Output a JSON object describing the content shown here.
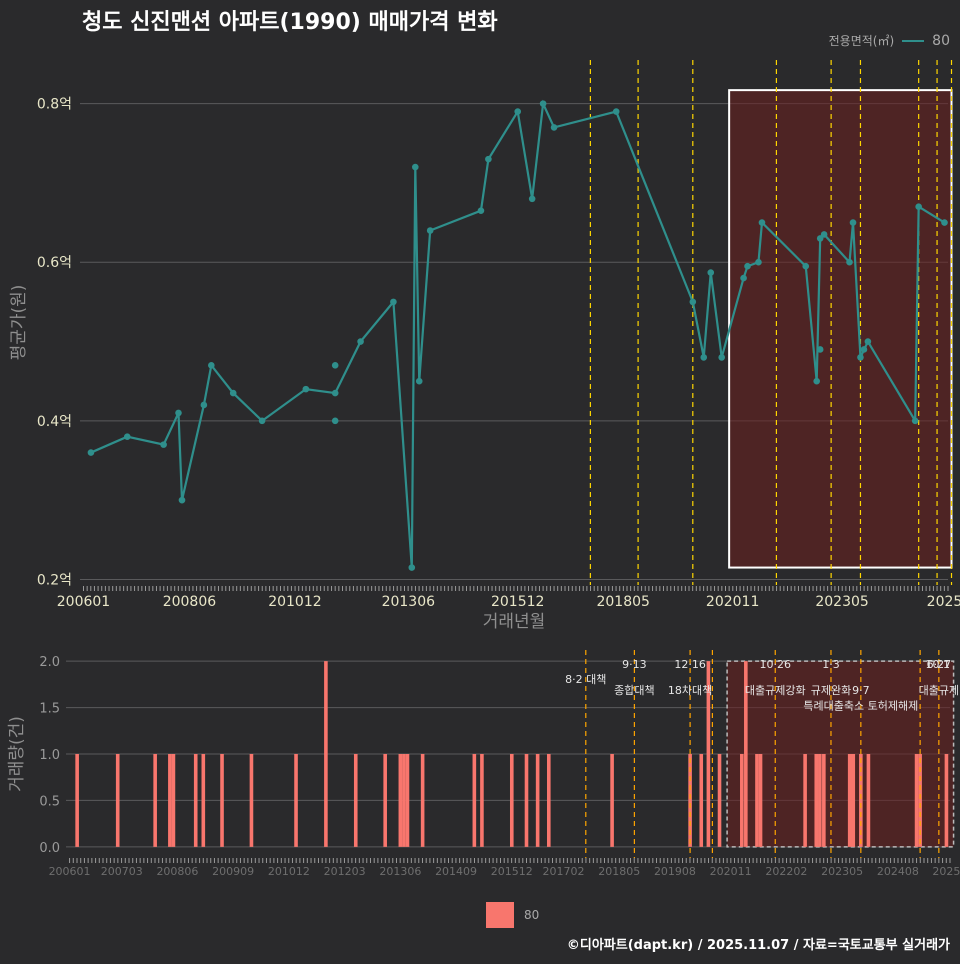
{
  "title": "청도 신진맨션 아파트(1990) 매매가격 변화",
  "credit": "©디아파트(dapt.kr) / 2025.11.07 / 자료=국토교통부 실거래가",
  "legend_top": {
    "title": "전용면적(㎡)",
    "value": "80"
  },
  "legend_bottom": {
    "value": "80"
  },
  "colors": {
    "background": "#2a2a2c",
    "line": "#2f8f8c",
    "bar": "#f8766d",
    "vline": "#ffd700",
    "vline_bottom": "#ffa500",
    "highlight": "#6b1f1f"
  },
  "chart_data": [
    {
      "type": "line",
      "title": "청도 신진맨션 아파트(1990) 매매가격 변화",
      "xlabel": "거래년월",
      "ylabel": "평균가(원)",
      "xlim": [
        2005.92,
        2025.75
      ],
      "ylim": [
        0.193,
        0.855
      ],
      "x_ticks": [
        {
          "x": 2006.0,
          "label": "200601"
        },
        {
          "x": 2008.42,
          "label": "200806"
        },
        {
          "x": 2010.83,
          "label": "201012"
        },
        {
          "x": 2013.42,
          "label": "201306"
        },
        {
          "x": 2015.92,
          "label": "201512"
        },
        {
          "x": 2018.33,
          "label": "201805"
        },
        {
          "x": 2020.83,
          "label": "202011"
        },
        {
          "x": 2023.33,
          "label": "202305"
        },
        {
          "x": 2025.67,
          "label": "2025"
        }
      ],
      "y_ticks": [
        {
          "y": 0.2,
          "label": "0.2억"
        },
        {
          "y": 0.4,
          "label": "0.4억"
        },
        {
          "y": 0.6,
          "label": "0.6억"
        },
        {
          "y": 0.8,
          "label": "0.8억"
        }
      ],
      "series": [
        {
          "name": "80",
          "points": [
            [
              2006.17,
              0.36
            ],
            [
              2007.0,
              0.38
            ],
            [
              2007.83,
              0.37
            ],
            [
              2008.17,
              0.41
            ],
            [
              2008.25,
              0.3
            ],
            [
              2008.75,
              0.42
            ],
            [
              2008.92,
              0.47
            ],
            [
              2009.42,
              0.435
            ],
            [
              2010.08,
              0.4
            ],
            [
              2011.08,
              0.44
            ],
            [
              2011.75,
              0.435
            ],
            [
              2012.33,
              0.5
            ],
            [
              2013.08,
              0.55
            ],
            [
              2013.5,
              0.215
            ],
            [
              2013.58,
              0.72
            ],
            [
              2013.67,
              0.45
            ],
            [
              2013.92,
              0.64
            ],
            [
              2015.08,
              0.665
            ],
            [
              2015.25,
              0.73
            ],
            [
              2015.92,
              0.79
            ],
            [
              2016.25,
              0.68
            ],
            [
              2016.5,
              0.8
            ],
            [
              2016.75,
              0.77
            ],
            [
              2018.17,
              0.79
            ],
            [
              2019.92,
              0.55
            ],
            [
              2020.17,
              0.48
            ],
            [
              2020.33,
              0.587
            ],
            [
              2020.58,
              0.48
            ],
            [
              2021.08,
              0.58
            ],
            [
              2021.17,
              0.595
            ],
            [
              2021.42,
              0.6
            ],
            [
              2021.5,
              0.65
            ],
            [
              2022.5,
              0.595
            ],
            [
              2022.75,
              0.45
            ],
            [
              2022.83,
              0.63
            ],
            [
              2022.92,
              0.635
            ],
            [
              2023.5,
              0.6
            ],
            [
              2023.58,
              0.65
            ],
            [
              2023.75,
              0.48
            ],
            [
              2023.92,
              0.5
            ],
            [
              2025.0,
              0.4
            ],
            [
              2025.08,
              0.67
            ],
            [
              2025.67,
              0.65
            ]
          ]
        }
      ],
      "extra_points": [
        [
          2011.75,
          0.47
        ],
        [
          2011.75,
          0.4
        ],
        [
          2022.83,
          0.49
        ],
        [
          2023.83,
          0.49
        ]
      ],
      "policy_lines": [
        2017.58,
        2018.67,
        2019.92,
        2021.83,
        2023.08,
        2023.75,
        2025.08,
        2025.5,
        2025.83
      ],
      "highlight": {
        "x0": 2020.75,
        "x1": 2025.83,
        "y0": 0.215,
        "y1": 0.817
      }
    },
    {
      "type": "bar",
      "xlabel": "",
      "ylabel": "거래량(건)",
      "xlim": [
        2005.92,
        2025.75
      ],
      "ylim": [
        -0.12,
        2.12
      ],
      "x_ticks": [
        {
          "x": 2006.0,
          "label": "200601"
        },
        {
          "x": 2007.17,
          "label": "200703"
        },
        {
          "x": 2008.42,
          "label": "200806"
        },
        {
          "x": 2009.67,
          "label": "200909"
        },
        {
          "x": 2010.92,
          "label": "201012"
        },
        {
          "x": 2012.17,
          "label": "201203"
        },
        {
          "x": 2013.42,
          "label": "201306"
        },
        {
          "x": 2014.67,
          "label": "201409"
        },
        {
          "x": 2015.92,
          "label": "201512"
        },
        {
          "x": 2017.08,
          "label": "201702"
        },
        {
          "x": 2018.33,
          "label": "201805"
        },
        {
          "x": 2019.58,
          "label": "201908"
        },
        {
          "x": 2020.83,
          "label": "202011"
        },
        {
          "x": 2022.08,
          "label": "202202"
        },
        {
          "x": 2023.33,
          "label": "202305"
        },
        {
          "x": 2024.58,
          "label": "202408"
        },
        {
          "x": 2025.67,
          "label": "2025"
        }
      ],
      "y_ticks": [
        {
          "y": 0,
          "label": "0.0"
        },
        {
          "y": 0.5,
          "label": "0.5"
        },
        {
          "y": 1.0,
          "label": "1.0"
        },
        {
          "y": 1.5,
          "label": "1.5"
        },
        {
          "y": 2.0,
          "label": "2.0"
        }
      ],
      "series": [
        {
          "name": "80",
          "bars": [
            [
              2006.17,
              1
            ],
            [
              2007.08,
              1
            ],
            [
              2007.92,
              1
            ],
            [
              2008.25,
              1
            ],
            [
              2008.33,
              1
            ],
            [
              2008.83,
              1
            ],
            [
              2009.0,
              1
            ],
            [
              2009.42,
              1
            ],
            [
              2010.08,
              1
            ],
            [
              2011.08,
              1
            ],
            [
              2011.75,
              2
            ],
            [
              2012.42,
              1
            ],
            [
              2013.08,
              1
            ],
            [
              2013.42,
              1
            ],
            [
              2013.5,
              1
            ],
            [
              2013.58,
              1
            ],
            [
              2013.92,
              1
            ],
            [
              2015.08,
              1
            ],
            [
              2015.25,
              1
            ],
            [
              2015.92,
              1
            ],
            [
              2016.25,
              1
            ],
            [
              2016.5,
              1
            ],
            [
              2016.75,
              1
            ],
            [
              2018.17,
              1
            ],
            [
              2019.92,
              1
            ],
            [
              2020.17,
              1
            ],
            [
              2020.33,
              2
            ],
            [
              2020.58,
              1
            ],
            [
              2021.08,
              1
            ],
            [
              2021.17,
              2
            ],
            [
              2021.42,
              1
            ],
            [
              2021.5,
              1
            ],
            [
              2022.5,
              1
            ],
            [
              2022.75,
              1
            ],
            [
              2022.83,
              1
            ],
            [
              2022.92,
              1
            ],
            [
              2023.5,
              1
            ],
            [
              2023.58,
              1
            ],
            [
              2023.75,
              1
            ],
            [
              2023.92,
              1
            ],
            [
              2025.0,
              1
            ],
            [
              2025.08,
              1
            ],
            [
              2025.67,
              1
            ]
          ]
        }
      ],
      "policy_lines": [
        2017.58,
        2018.67,
        2019.92,
        2020.42,
        2021.83,
        2023.08,
        2023.75,
        2025.08,
        2025.5
      ],
      "highlight": {
        "x0": 2020.75,
        "x1": 2025.83,
        "y0": 0,
        "y1": 2.0
      },
      "annotations": [
        {
          "x": 2017.58,
          "y": 1.81,
          "text": "8·2 대책",
          "anchor": "middle"
        },
        {
          "x": 2018.67,
          "y": 1.97,
          "text": "9·13",
          "anchor": "middle"
        },
        {
          "x": 2018.67,
          "y": 1.69,
          "text": "종합대책",
          "anchor": "middle"
        },
        {
          "x": 2019.92,
          "y": 1.97,
          "text": "12·16",
          "anchor": "middle"
        },
        {
          "x": 2019.92,
          "y": 1.69,
          "text": "18차대책",
          "anchor": "middle"
        },
        {
          "x": 2021.83,
          "y": 1.97,
          "text": "10·26",
          "anchor": "middle"
        },
        {
          "x": 2021.83,
          "y": 1.69,
          "text": "대출규제강화",
          "anchor": "middle"
        },
        {
          "x": 2023.08,
          "y": 1.97,
          "text": "1·3",
          "anchor": "middle"
        },
        {
          "x": 2023.08,
          "y": 1.69,
          "text": "규제완화",
          "anchor": "middle"
        },
        {
          "x": 2023.75,
          "y": 1.69,
          "text": "9·7",
          "anchor": "middle"
        },
        {
          "x": 2023.75,
          "y": 1.52,
          "text": "특례대출축소 토허제해제",
          "anchor": "middle"
        },
        {
          "x": 2025.5,
          "y": 1.97,
          "text": "6·27",
          "anchor": "middle"
        },
        {
          "x": 2025.5,
          "y": 1.69,
          "text": "대출규제",
          "anchor": "middle"
        },
        {
          "x": 2025.75,
          "y": 1.97,
          "text": "10·1",
          "anchor": "end"
        }
      ]
    }
  ]
}
